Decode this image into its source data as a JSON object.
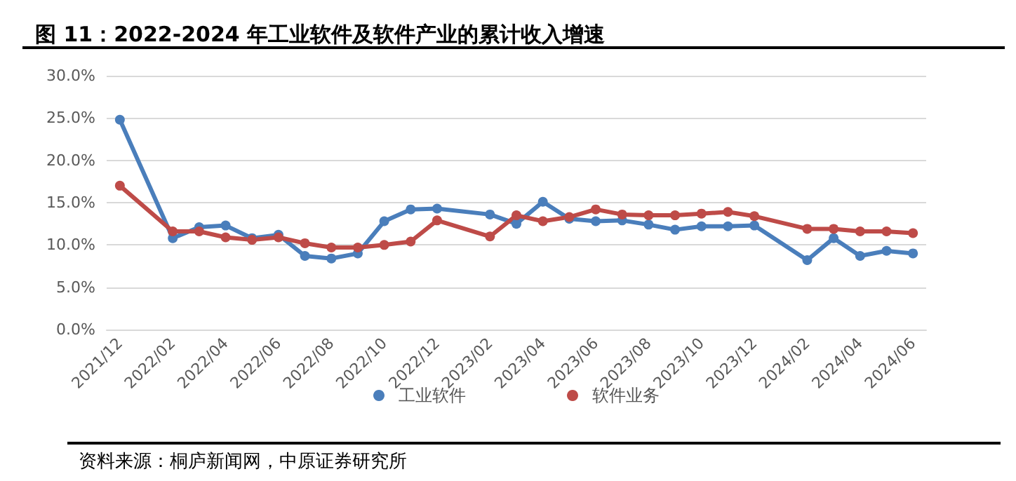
{
  "chart_data": {
    "type": "line",
    "title": "图 11：2022-2024 年工业软件及软件产业的累计收入增速",
    "categories": [
      "2021/12",
      null,
      "2022/02",
      null,
      "2022/04",
      null,
      "2022/06",
      null,
      "2022/08",
      null,
      "2022/10",
      null,
      "2022/12",
      null,
      "2023/02",
      null,
      "2023/04",
      null,
      "2023/06",
      null,
      "2023/08",
      null,
      "2023/10",
      null,
      "2023/12",
      null,
      "2024/02",
      null,
      "2024/04",
      null,
      "2024/06"
    ],
    "series": [
      {
        "name": "工业软件",
        "color": "#4a7ebb",
        "values": [
          24.8,
          null,
          10.8,
          12.1,
          12.3,
          10.8,
          11.2,
          8.7,
          8.4,
          9.0,
          12.8,
          14.2,
          14.3,
          null,
          13.6,
          12.5,
          15.1,
          13.1,
          12.8,
          12.9,
          12.4,
          11.8,
          12.2,
          12.2,
          12.3,
          null,
          8.2,
          10.8,
          8.7,
          9.3,
          9.0
        ]
      },
      {
        "name": "软件业务",
        "color": "#be4b48",
        "values": [
          17.0,
          null,
          11.6,
          11.6,
          10.9,
          10.6,
          10.9,
          10.2,
          9.7,
          9.7,
          10.0,
          10.4,
          12.9,
          null,
          11.0,
          13.5,
          12.8,
          13.3,
          14.2,
          13.6,
          13.5,
          13.5,
          13.7,
          13.9,
          13.4,
          null,
          11.9,
          11.9,
          11.6,
          11.6,
          11.4
        ]
      }
    ],
    "ylim": [
      0,
      30
    ],
    "yticks": [
      {
        "value": 0,
        "label": "0.0%"
      },
      {
        "value": 5,
        "label": "5.0%"
      },
      {
        "value": 10,
        "label": "10.0%"
      },
      {
        "value": 15,
        "label": "15.0%"
      },
      {
        "value": 20,
        "label": "20.0%"
      },
      {
        "value": 25,
        "label": "25.0%"
      },
      {
        "value": 30,
        "label": "30.0%"
      }
    ],
    "grid": "y",
    "legend": "bottom",
    "marker": "circle",
    "line_style": "solid",
    "annotations": [
      "资料来源：桐庐新闻网，中原证券研究所"
    ]
  }
}
